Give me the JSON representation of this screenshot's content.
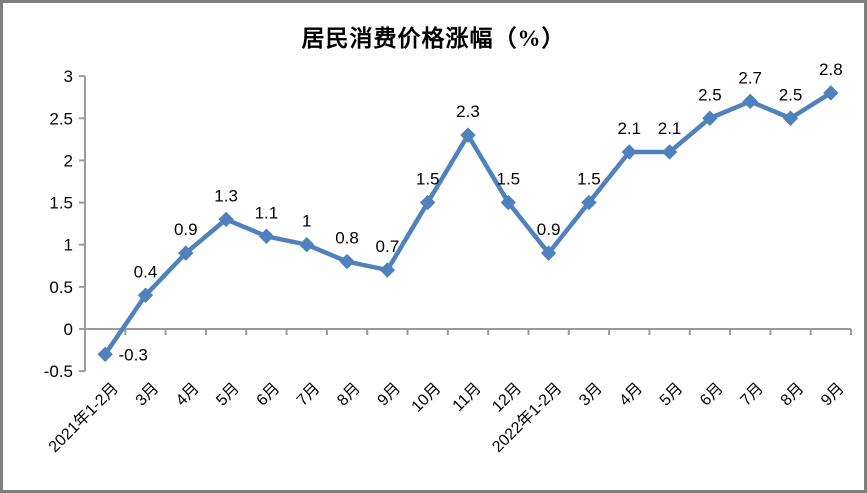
{
  "frame": {
    "border_color": "#7f7f7f",
    "background": "#ffffff"
  },
  "chart_data": {
    "type": "line",
    "title": "居民消费价格涨幅（%）",
    "categories": [
      "2021年1-2月",
      "3月",
      "4月",
      "5月",
      "6月",
      "7月",
      "8月",
      "9月",
      "10月",
      "11月",
      "12月",
      "2022年1-2月",
      "3月",
      "4月",
      "5月",
      "6月",
      "7月",
      "8月",
      "9月"
    ],
    "values": [
      -0.3,
      0.4,
      0.9,
      1.3,
      1.1,
      1,
      0.8,
      0.7,
      1.5,
      2.3,
      1.5,
      0.9,
      1.5,
      2.1,
      2.1,
      2.5,
      2.7,
      2.5,
      2.8
    ],
    "data_labels": [
      "-0.3",
      "0.4",
      "0.9",
      "1.3",
      "1.1",
      "1",
      "0.8",
      "0.7",
      "1.5",
      "2.3",
      "1.5",
      "0.9",
      "1.5",
      "2.1",
      "2.1",
      "2.5",
      "2.7",
      "2.5",
      "2.8"
    ],
    "y_tick_values": [
      3,
      2.5,
      2,
      1.5,
      1,
      0.5,
      0,
      -0.5
    ],
    "y_tick_labels": [
      "3",
      "2.5",
      "2",
      "1.5",
      "1",
      "0.5",
      "0",
      "-0.5"
    ],
    "ylim": [
      -0.5,
      3
    ],
    "xlabel": "",
    "ylabel": "",
    "legend_position": "none",
    "grid": false,
    "x_labels_rotation_deg": -45,
    "colors": {
      "line": "#4F81BD",
      "marker": "#4F81BD",
      "axis": "#9b9b9b",
      "text": "#000000"
    }
  }
}
